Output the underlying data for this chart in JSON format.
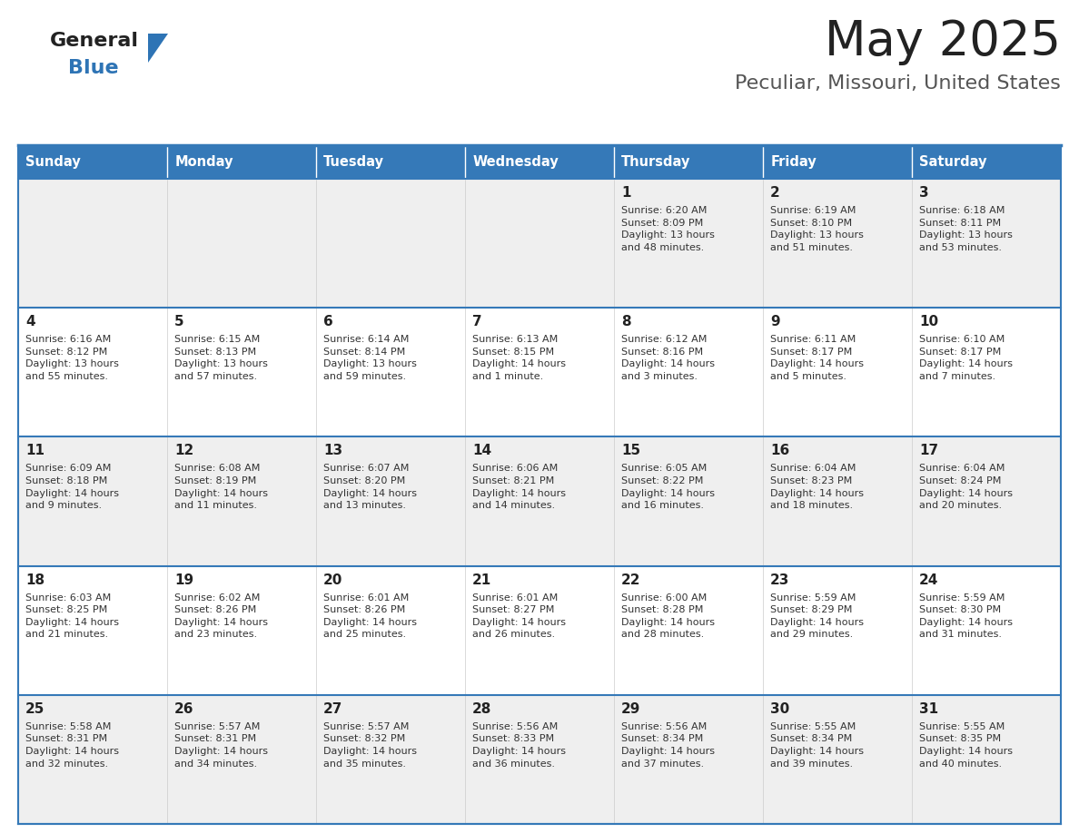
{
  "title": "May 2025",
  "subtitle": "Peculiar, Missouri, United States",
  "header_color": "#3579B8",
  "header_text_color": "#FFFFFF",
  "day_names": [
    "Sunday",
    "Monday",
    "Tuesday",
    "Wednesday",
    "Thursday",
    "Friday",
    "Saturday"
  ],
  "bg_color": "#F2F2F2",
  "cell_bg_row0": "#EFEFEF",
  "cell_bg_row1": "#FFFFFF",
  "border_color": "#3579B8",
  "text_color": "#333333",
  "logo_general_color": "#222222",
  "logo_blue_color": "#2E74B5",
  "logo_triangle_color": "#2E74B5",
  "title_color": "#222222",
  "subtitle_color": "#555555",
  "calendar": [
    [
      {
        "day": null,
        "info": ""
      },
      {
        "day": null,
        "info": ""
      },
      {
        "day": null,
        "info": ""
      },
      {
        "day": null,
        "info": ""
      },
      {
        "day": 1,
        "info": "Sunrise: 6:20 AM\nSunset: 8:09 PM\nDaylight: 13 hours\nand 48 minutes."
      },
      {
        "day": 2,
        "info": "Sunrise: 6:19 AM\nSunset: 8:10 PM\nDaylight: 13 hours\nand 51 minutes."
      },
      {
        "day": 3,
        "info": "Sunrise: 6:18 AM\nSunset: 8:11 PM\nDaylight: 13 hours\nand 53 minutes."
      }
    ],
    [
      {
        "day": 4,
        "info": "Sunrise: 6:16 AM\nSunset: 8:12 PM\nDaylight: 13 hours\nand 55 minutes."
      },
      {
        "day": 5,
        "info": "Sunrise: 6:15 AM\nSunset: 8:13 PM\nDaylight: 13 hours\nand 57 minutes."
      },
      {
        "day": 6,
        "info": "Sunrise: 6:14 AM\nSunset: 8:14 PM\nDaylight: 13 hours\nand 59 minutes."
      },
      {
        "day": 7,
        "info": "Sunrise: 6:13 AM\nSunset: 8:15 PM\nDaylight: 14 hours\nand 1 minute."
      },
      {
        "day": 8,
        "info": "Sunrise: 6:12 AM\nSunset: 8:16 PM\nDaylight: 14 hours\nand 3 minutes."
      },
      {
        "day": 9,
        "info": "Sunrise: 6:11 AM\nSunset: 8:17 PM\nDaylight: 14 hours\nand 5 minutes."
      },
      {
        "day": 10,
        "info": "Sunrise: 6:10 AM\nSunset: 8:17 PM\nDaylight: 14 hours\nand 7 minutes."
      }
    ],
    [
      {
        "day": 11,
        "info": "Sunrise: 6:09 AM\nSunset: 8:18 PM\nDaylight: 14 hours\nand 9 minutes."
      },
      {
        "day": 12,
        "info": "Sunrise: 6:08 AM\nSunset: 8:19 PM\nDaylight: 14 hours\nand 11 minutes."
      },
      {
        "day": 13,
        "info": "Sunrise: 6:07 AM\nSunset: 8:20 PM\nDaylight: 14 hours\nand 13 minutes."
      },
      {
        "day": 14,
        "info": "Sunrise: 6:06 AM\nSunset: 8:21 PM\nDaylight: 14 hours\nand 14 minutes."
      },
      {
        "day": 15,
        "info": "Sunrise: 6:05 AM\nSunset: 8:22 PM\nDaylight: 14 hours\nand 16 minutes."
      },
      {
        "day": 16,
        "info": "Sunrise: 6:04 AM\nSunset: 8:23 PM\nDaylight: 14 hours\nand 18 minutes."
      },
      {
        "day": 17,
        "info": "Sunrise: 6:04 AM\nSunset: 8:24 PM\nDaylight: 14 hours\nand 20 minutes."
      }
    ],
    [
      {
        "day": 18,
        "info": "Sunrise: 6:03 AM\nSunset: 8:25 PM\nDaylight: 14 hours\nand 21 minutes."
      },
      {
        "day": 19,
        "info": "Sunrise: 6:02 AM\nSunset: 8:26 PM\nDaylight: 14 hours\nand 23 minutes."
      },
      {
        "day": 20,
        "info": "Sunrise: 6:01 AM\nSunset: 8:26 PM\nDaylight: 14 hours\nand 25 minutes."
      },
      {
        "day": 21,
        "info": "Sunrise: 6:01 AM\nSunset: 8:27 PM\nDaylight: 14 hours\nand 26 minutes."
      },
      {
        "day": 22,
        "info": "Sunrise: 6:00 AM\nSunset: 8:28 PM\nDaylight: 14 hours\nand 28 minutes."
      },
      {
        "day": 23,
        "info": "Sunrise: 5:59 AM\nSunset: 8:29 PM\nDaylight: 14 hours\nand 29 minutes."
      },
      {
        "day": 24,
        "info": "Sunrise: 5:59 AM\nSunset: 8:30 PM\nDaylight: 14 hours\nand 31 minutes."
      }
    ],
    [
      {
        "day": 25,
        "info": "Sunrise: 5:58 AM\nSunset: 8:31 PM\nDaylight: 14 hours\nand 32 minutes."
      },
      {
        "day": 26,
        "info": "Sunrise: 5:57 AM\nSunset: 8:31 PM\nDaylight: 14 hours\nand 34 minutes."
      },
      {
        "day": 27,
        "info": "Sunrise: 5:57 AM\nSunset: 8:32 PM\nDaylight: 14 hours\nand 35 minutes."
      },
      {
        "day": 28,
        "info": "Sunrise: 5:56 AM\nSunset: 8:33 PM\nDaylight: 14 hours\nand 36 minutes."
      },
      {
        "day": 29,
        "info": "Sunrise: 5:56 AM\nSunset: 8:34 PM\nDaylight: 14 hours\nand 37 minutes."
      },
      {
        "day": 30,
        "info": "Sunrise: 5:55 AM\nSunset: 8:34 PM\nDaylight: 14 hours\nand 39 minutes."
      },
      {
        "day": 31,
        "info": "Sunrise: 5:55 AM\nSunset: 8:35 PM\nDaylight: 14 hours\nand 40 minutes."
      }
    ]
  ]
}
